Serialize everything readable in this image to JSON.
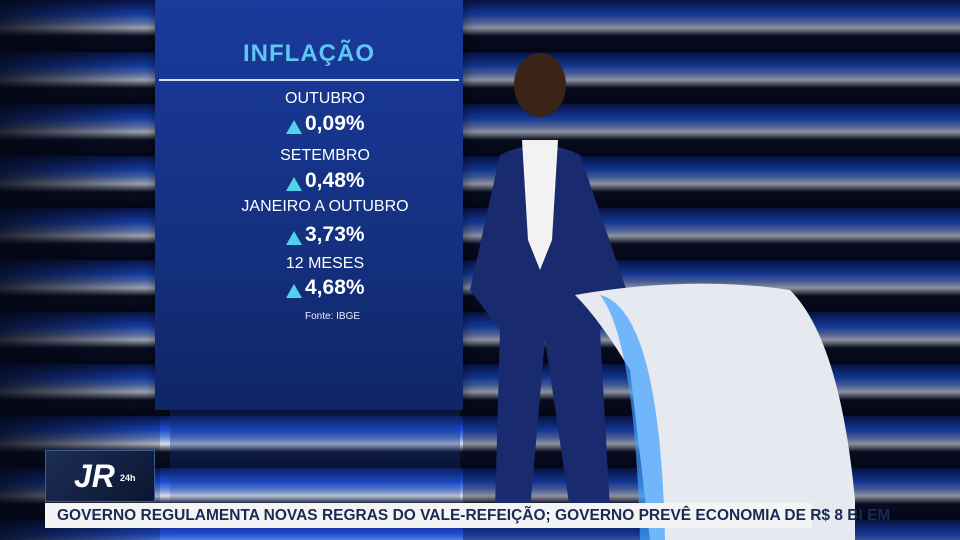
{
  "panel": {
    "title": "INFLAÇÃO",
    "items": [
      {
        "label": "OUTUBRO",
        "value": "0,09%"
      },
      {
        "label": "SETEMBRO",
        "value": "0,48%"
      },
      {
        "label": "JANEIRO A OUTUBRO",
        "value": "3,73%"
      },
      {
        "label": "12 MESES",
        "value": "4,68%"
      }
    ],
    "source": "Fonte: IBGE"
  },
  "logo": {
    "text": "JR",
    "suffix": "24h"
  },
  "ticker": {
    "text": "GOVERNO REGULAMENTA NOVAS REGRAS DO VALE-REFEIÇÃO; GOVERNO PREVÊ ECONOMIA DE R$ 8 BI EM"
  }
}
